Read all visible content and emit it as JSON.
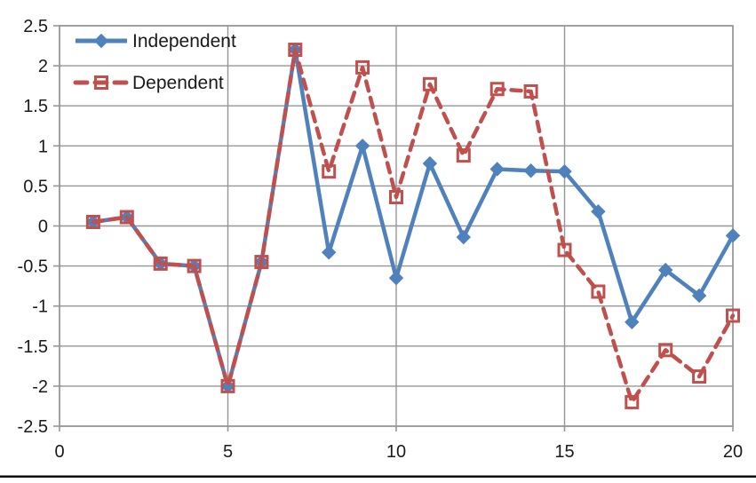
{
  "chart_data": {
    "type": "line",
    "title": "",
    "xlabel": "",
    "ylabel": "",
    "x": [
      1,
      2,
      3,
      4,
      5,
      6,
      7,
      8,
      9,
      10,
      11,
      12,
      13,
      14,
      15,
      16,
      17,
      18,
      19,
      20
    ],
    "series": [
      {
        "name": "Independent",
        "color": "#4F81BD",
        "marker": "diamond",
        "line_style": "solid",
        "values": [
          0.05,
          0.11,
          -0.47,
          -0.5,
          -2.0,
          -0.45,
          2.2,
          -0.33,
          1.0,
          -0.65,
          0.78,
          -0.14,
          0.71,
          0.69,
          0.68,
          0.18,
          -1.2,
          -0.55,
          -0.87,
          -0.12
        ]
      },
      {
        "name": "Dependent",
        "color": "#C0504D",
        "marker": "open-square",
        "line_style": "dashed",
        "values": [
          0.05,
          0.11,
          -0.47,
          -0.5,
          -2.0,
          -0.45,
          2.2,
          0.68,
          1.98,
          0.36,
          1.77,
          0.88,
          1.71,
          1.68,
          -0.3,
          -0.82,
          -2.2,
          -1.55,
          -1.88,
          -1.12
        ]
      }
    ],
    "xlim": [
      0,
      20
    ],
    "ylim": [
      -2.5,
      2.5
    ],
    "x_ticks": [
      0,
      5,
      10,
      15,
      20
    ],
    "x_tick_labels": [
      "0",
      "5",
      "10",
      "15",
      "20"
    ],
    "y_ticks": [
      2.5,
      2,
      1.5,
      1,
      0.5,
      0,
      -0.5,
      -1,
      -1.5,
      -2,
      -2.5
    ],
    "y_tick_labels": [
      "2.5",
      "2",
      "1.5",
      "1",
      "0.5",
      "0",
      "-0.5",
      "-1",
      "-1.5",
      "-2",
      "-2.5"
    ],
    "grid": true,
    "gridline_color": "#969696",
    "axis_text_color": "#1a1a1a",
    "legend_position": "top-left-inside"
  },
  "legend": {
    "items": [
      {
        "label": "Independent"
      },
      {
        "label": "Dependent"
      }
    ]
  }
}
